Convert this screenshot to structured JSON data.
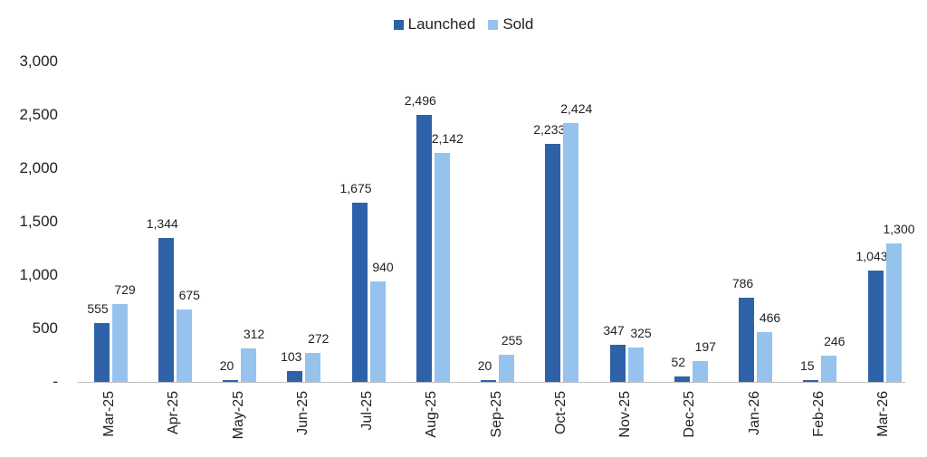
{
  "legend": {
    "items": [
      {
        "label": "Launched",
        "color": "#2e62a8"
      },
      {
        "label": "Sold",
        "color": "#95c3ee"
      }
    ]
  },
  "y_axis": {
    "ticks": [
      "3,000",
      "2,500",
      "2,000",
      "1,500",
      "1,000",
      "500",
      "-"
    ]
  },
  "chart_data": {
    "type": "bar",
    "title": "",
    "xlabel": "",
    "ylabel": "",
    "ylim": [
      0,
      3000
    ],
    "grid": false,
    "legend_position": "top",
    "categories": [
      "Mar-25",
      "Apr-25",
      "May-25",
      "Jun-25",
      "Jul-25",
      "Aug-25",
      "Sep-25",
      "Oct-25",
      "Nov-25",
      "Dec-25",
      "Jan-26",
      "Feb-26",
      "Mar-26"
    ],
    "series": [
      {
        "name": "Launched",
        "color": "#2e62a8",
        "values": [
          555,
          1344,
          20,
          103,
          1675,
          2496,
          20,
          2233,
          347,
          52,
          786,
          15,
          1043
        ],
        "labels": [
          "555",
          "1,344",
          "20",
          "103",
          "1,675",
          "2,496",
          "20",
          "2,233",
          "347",
          "52",
          "786",
          "15",
          "1,043"
        ]
      },
      {
        "name": "Sold",
        "color": "#95c3ee",
        "values": [
          729,
          675,
          312,
          272,
          940,
          2142,
          255,
          2424,
          325,
          197,
          466,
          246,
          1300
        ],
        "labels": [
          "729",
          "675",
          "312",
          "272",
          "940",
          "2,142",
          "255",
          "2,424",
          "325",
          "197",
          "466",
          "246",
          "1,300"
        ]
      }
    ]
  }
}
